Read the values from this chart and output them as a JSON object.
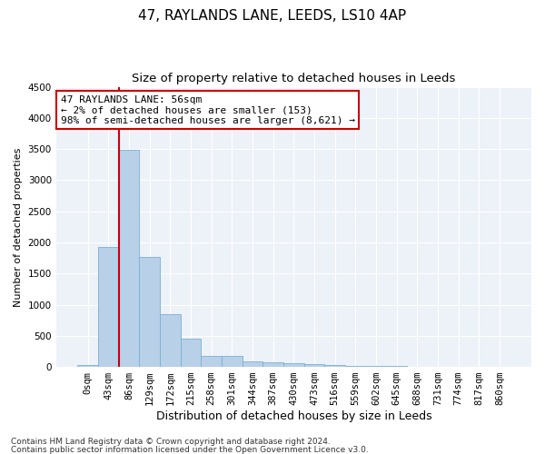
{
  "title1": "47, RAYLANDS LANE, LEEDS, LS10 4AP",
  "title2": "Size of property relative to detached houses in Leeds",
  "xlabel": "Distribution of detached houses by size in Leeds",
  "ylabel": "Number of detached properties",
  "bar_labels": [
    "0sqm",
    "43sqm",
    "86sqm",
    "129sqm",
    "172sqm",
    "215sqm",
    "258sqm",
    "301sqm",
    "344sqm",
    "387sqm",
    "430sqm",
    "473sqm",
    "516sqm",
    "559sqm",
    "602sqm",
    "645sqm",
    "688sqm",
    "731sqm",
    "774sqm",
    "817sqm",
    "860sqm"
  ],
  "bar_values": [
    30,
    1920,
    3480,
    1760,
    840,
    450,
    170,
    170,
    90,
    80,
    55,
    45,
    35,
    20,
    15,
    10,
    8,
    5,
    3,
    2,
    1
  ],
  "bar_color": "#b8d0e8",
  "bar_edge_color": "#7aafd4",
  "vline_color": "#cc0000",
  "ylim": [
    0,
    4500
  ],
  "yticks": [
    0,
    500,
    1000,
    1500,
    2000,
    2500,
    3000,
    3500,
    4000,
    4500
  ],
  "annotation_line1": "47 RAYLANDS LANE: 56sqm",
  "annotation_line2": "← 2% of detached houses are smaller (153)",
  "annotation_line3": "98% of semi-detached houses are larger (8,621) →",
  "annotation_box_color": "#ffffff",
  "annotation_box_edge": "#cc0000",
  "footer1": "Contains HM Land Registry data © Crown copyright and database right 2024.",
  "footer2": "Contains public sector information licensed under the Open Government Licence v3.0.",
  "title1_fontsize": 11,
  "title2_fontsize": 9.5,
  "xlabel_fontsize": 9,
  "ylabel_fontsize": 8,
  "tick_fontsize": 7.5,
  "annotation_fontsize": 8,
  "footer_fontsize": 6.5,
  "vline_x_index": 1.5
}
